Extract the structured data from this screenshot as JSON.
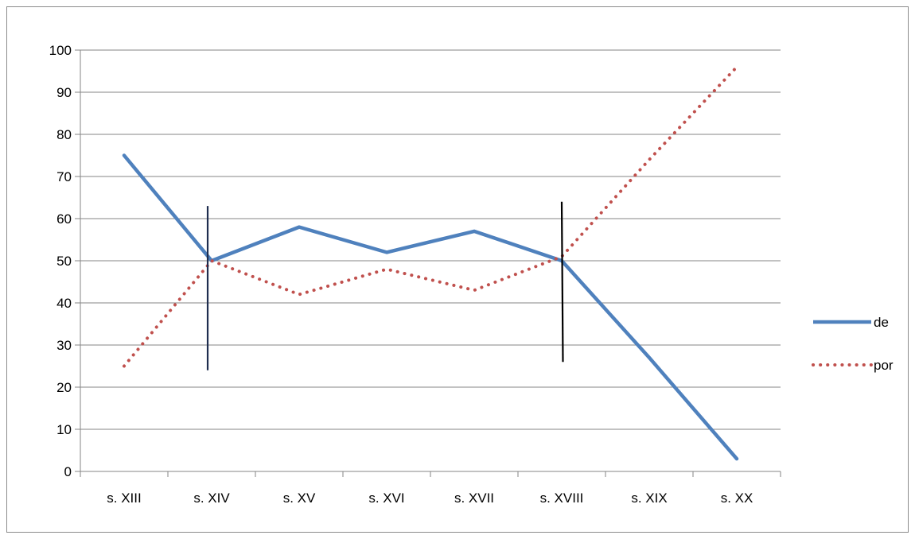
{
  "chart_data": {
    "type": "line",
    "title": "",
    "xlabel": "",
    "ylabel": "",
    "categories": [
      "s. XIII",
      "s. XIV",
      "s. XV",
      "s. XVI",
      "s. XVII",
      "s. XVIII",
      "s. XIX",
      "s. XX"
    ],
    "ylim": [
      0,
      100
    ],
    "yticks": [
      0,
      10,
      20,
      30,
      40,
      50,
      60,
      70,
      80,
      90,
      100
    ],
    "grid": "horizontal",
    "legend_position": "right",
    "series": [
      {
        "name": "de",
        "values": [
          75,
          50,
          58,
          52,
          57,
          50,
          27,
          3
        ],
        "color": "#4f81bd",
        "style": "solid"
      },
      {
        "name": "por",
        "values": [
          25,
          50,
          42,
          48,
          43,
          51,
          74,
          96
        ],
        "color": "#c0504d",
        "style": "dotted"
      }
    ],
    "annotations": [
      {
        "type": "vertical-line",
        "category": "s. XIV",
        "y_from": 24,
        "y_to": 63,
        "color": "#1f2d4f"
      },
      {
        "type": "vertical-line",
        "category": "s. XVIII",
        "y_from": 26,
        "y_to": 64,
        "color": "#000000"
      }
    ]
  }
}
